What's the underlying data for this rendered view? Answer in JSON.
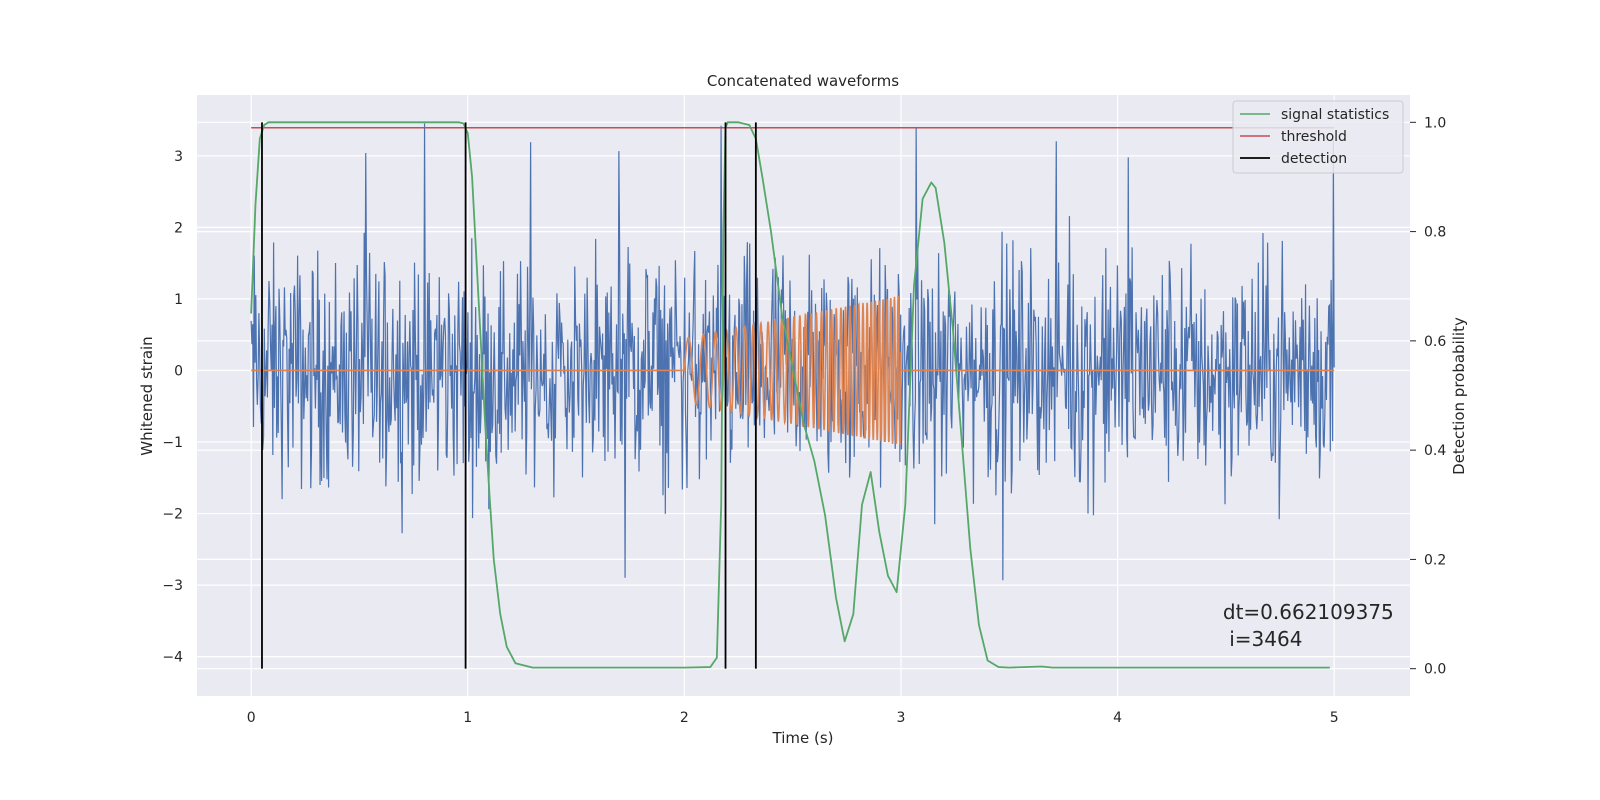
{
  "chart_data": {
    "type": "line",
    "title": "Concatenated waveforms",
    "xlabel": "Time (s)",
    "ylabel": "Whitened strain",
    "ylabel_right": "Detection probability",
    "xlim": [
      -0.25,
      5.35
    ],
    "ylim": [
      -4.55,
      3.85
    ],
    "ylim_right": [
      -0.05,
      1.05
    ],
    "x_ticks": [
      0,
      1,
      2,
      3,
      4,
      5
    ],
    "y_ticks": [
      -4,
      -3,
      -2,
      -1,
      0,
      1,
      2,
      3
    ],
    "y_ticks_right": [
      0.0,
      0.2,
      0.4,
      0.6,
      0.8,
      1.0
    ],
    "grid": true,
    "legend_position": "top-right",
    "colors": {
      "strain": "#4c72b0",
      "injection": "#dd8452",
      "signal_statistics": "#55a868",
      "threshold": "#c44e52",
      "detection": "#000000",
      "background": "#eaeaf2",
      "grid": "#ffffff"
    },
    "series": [
      {
        "name": "signal statistics",
        "axis": "right",
        "x": [
          0.0,
          0.02,
          0.04,
          0.06,
          0.08,
          0.1,
          0.2,
          0.5,
          0.96,
          0.98,
          1.0,
          1.02,
          1.04,
          1.06,
          1.08,
          1.1,
          1.12,
          1.15,
          1.18,
          1.22,
          1.3,
          1.6,
          2.0,
          2.12,
          2.15,
          2.17,
          2.18,
          2.19,
          2.2,
          2.25,
          2.3,
          2.33,
          2.36,
          2.4,
          2.45,
          2.5,
          2.55,
          2.6,
          2.65,
          2.7,
          2.74,
          2.78,
          2.82,
          2.86,
          2.9,
          2.94,
          2.98,
          3.02,
          3.06,
          3.1,
          3.14,
          3.16,
          3.2,
          3.24,
          3.28,
          3.32,
          3.36,
          3.4,
          3.45,
          3.5,
          3.65,
          3.7,
          4.0,
          4.5,
          4.98
        ],
        "y": [
          0.65,
          0.85,
          0.97,
          0.995,
          1.0,
          1.0,
          1.0,
          1.0,
          1.0,
          0.998,
          0.98,
          0.9,
          0.75,
          0.6,
          0.45,
          0.32,
          0.2,
          0.1,
          0.04,
          0.01,
          0.002,
          0.002,
          0.002,
          0.003,
          0.02,
          0.3,
          0.8,
          0.99,
          1.0,
          1.0,
          0.995,
          0.97,
          0.9,
          0.8,
          0.65,
          0.55,
          0.45,
          0.38,
          0.28,
          0.13,
          0.05,
          0.1,
          0.3,
          0.36,
          0.25,
          0.17,
          0.14,
          0.3,
          0.7,
          0.86,
          0.89,
          0.88,
          0.78,
          0.62,
          0.42,
          0.22,
          0.08,
          0.015,
          0.003,
          0.002,
          0.004,
          0.002,
          0.002,
          0.002,
          0.002
        ]
      },
      {
        "name": "threshold",
        "axis": "right",
        "x": [
          0.0,
          5.0
        ],
        "y": [
          0.99,
          0.99
        ]
      },
      {
        "name": "detection",
        "axis": "right",
        "x_positions": [
          0.05,
          0.99,
          2.19,
          2.33
        ],
        "y_range": [
          0.0,
          1.0
        ]
      },
      {
        "axis": "left",
        "x_range": [
          0.0,
          5.0
        ],
        "amplitude_envelope": [
          -3.4,
          3.5
        ],
        "sample_count": 1400
      },
      {
        "axis": "left",
        "x_range": [
          2.0,
          3.0
        ],
        "amplitude_start": 0.45,
        "amplitude_end": 1.05,
        "frequency_start": 12,
        "frequency_end": 60
      }
    ],
    "annotation": {
      "line1": "dt=0.662109375",
      "line2": " i=3464",
      "x": 4.5,
      "y_right": 0.1
    }
  }
}
